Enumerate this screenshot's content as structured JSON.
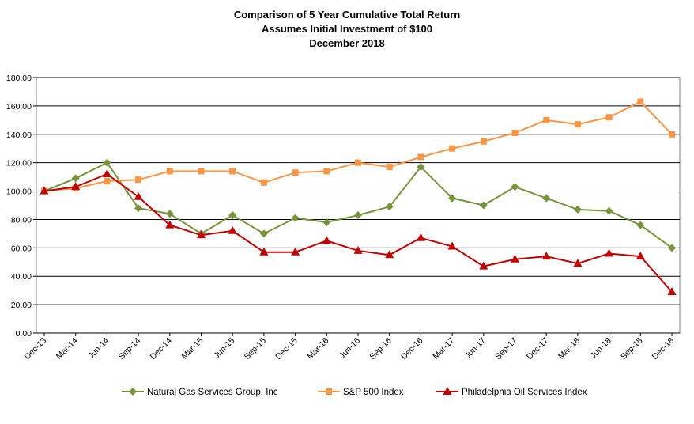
{
  "chart_data": {
    "type": "line",
    "title": "Comparison of 5 Year Cumulative Total Return",
    "subtitle": "Assumes Initial Investment of $100",
    "subtitle2": "December 2018",
    "xlabel": "",
    "ylabel": "",
    "ylim": [
      0,
      180
    ],
    "yticks": [
      "0.00",
      "20.00",
      "40.00",
      "60.00",
      "80.00",
      "100.00",
      "120.00",
      "140.00",
      "160.00",
      "180.00"
    ],
    "grid": true,
    "legend_position": "bottom",
    "categories": [
      "Dec-13",
      "Mar-14",
      "Jun-14",
      "Sep-14",
      "Dec-14",
      "Mar-15",
      "Jun-15",
      "Sep-15",
      "Dec-15",
      "Mar-16",
      "Jun-16",
      "Sep-16",
      "Dec-16",
      "Mar-17",
      "Jun-17",
      "Sep-17",
      "Dec-17",
      "Mar-18",
      "Jun-18",
      "Sep-18",
      "Dec-18"
    ],
    "series": [
      {
        "name": "Natural Gas Services Group, Inc",
        "color": "#77933c",
        "marker": "diamond",
        "values": [
          100,
          109,
          120,
          88,
          84,
          70,
          83,
          70,
          81,
          78,
          83,
          89,
          117,
          95,
          90,
          103,
          95,
          87,
          86,
          76,
          60
        ]
      },
      {
        "name": "S&P 500 Index",
        "color": "#f79646",
        "marker": "square",
        "values": [
          100,
          102,
          107,
          108,
          114,
          114,
          114,
          106,
          113,
          114,
          120,
          117,
          124,
          130,
          135,
          141,
          150,
          147,
          152,
          163,
          140
        ]
      },
      {
        "name": "Philadelphia Oil Services Index",
        "color": "#c00000",
        "marker": "triangle",
        "values": [
          100,
          103,
          112,
          96,
          76,
          69,
          72,
          57,
          57,
          65,
          58,
          55,
          67,
          61,
          47,
          52,
          54,
          49,
          56,
          54,
          29
        ]
      }
    ]
  }
}
